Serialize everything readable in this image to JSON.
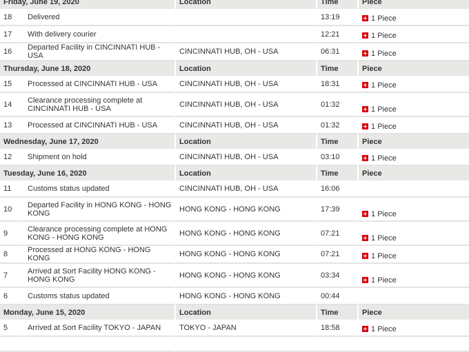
{
  "colors": {
    "header_bg": "#e8e8e6",
    "piece_icon": "#d40511"
  },
  "columns": {
    "location": "Location",
    "time": "Time",
    "piece": "Piece"
  },
  "groups": [
    {
      "date": "Friday, June 19, 2020",
      "events": [
        {
          "n": "18",
          "desc": "Delivered",
          "loc": "",
          "time": "13:19",
          "piece": "1 Piece"
        },
        {
          "n": "17",
          "desc": "With delivery courier",
          "loc": "",
          "time": "12:21",
          "piece": "1 Piece"
        },
        {
          "n": "16",
          "desc": "Departed Facility in CINCINNATI HUB - USA",
          "loc": "CINCINNATI HUB, OH - USA",
          "time": "06:31",
          "piece": "1 Piece"
        }
      ]
    },
    {
      "date": "Thursday, June 18, 2020",
      "events": [
        {
          "n": "15",
          "desc": "Processed at CINCINNATI HUB - USA",
          "loc": "CINCINNATI HUB, OH - USA",
          "time": "18:31",
          "piece": "1 Piece"
        },
        {
          "n": "14",
          "desc": "Clearance processing complete at CINCINNATI HUB - USA",
          "loc": "CINCINNATI HUB, OH - USA",
          "time": "01:32",
          "piece": "1 Piece",
          "tall": true
        },
        {
          "n": "13",
          "desc": "Processed at CINCINNATI HUB - USA",
          "loc": "CINCINNATI HUB, OH - USA",
          "time": "01:32",
          "piece": "1 Piece"
        }
      ]
    },
    {
      "date": "Wednesday, June 17, 2020",
      "events": [
        {
          "n": "12",
          "desc": "Shipment on hold",
          "loc": "CINCINNATI HUB, OH - USA",
          "time": "03:10",
          "piece": "1 Piece"
        }
      ]
    },
    {
      "date": "Tuesday, June 16, 2020",
      "events": [
        {
          "n": "11",
          "desc": "Customs status updated",
          "loc": "CINCINNATI HUB, OH - USA",
          "time": "16:06",
          "piece": ""
        },
        {
          "n": "10",
          "desc": "Departed Facility in HONG KONG - HONG KONG",
          "loc": "HONG KONG - HONG KONG",
          "time": "17:39",
          "piece": "1 Piece",
          "tall": true
        },
        {
          "n": "9",
          "desc": "Clearance processing complete at HONG KONG - HONG KONG",
          "loc": "HONG KONG - HONG KONG",
          "time": "07:21",
          "piece": "1 Piece",
          "tall": true
        },
        {
          "n": "8",
          "desc": "Processed at HONG KONG - HONG KONG",
          "loc": "HONG KONG - HONG KONG",
          "time": "07:21",
          "piece": "1 Piece"
        },
        {
          "n": "7",
          "desc": "Arrived at Sort Facility HONG KONG - HONG KONG",
          "loc": "HONG KONG - HONG KONG",
          "time": "03:34",
          "piece": "1 Piece",
          "tall": true
        },
        {
          "n": "6",
          "desc": "Customs status updated",
          "loc": "HONG KONG - HONG KONG",
          "time": "00:44",
          "piece": ""
        }
      ]
    },
    {
      "date": "Monday, June 15, 2020",
      "events": [
        {
          "n": "5",
          "desc": "Arrived at Sort Facility TOKYO - JAPAN",
          "loc": "TOKYO - JAPAN",
          "time": "18:58",
          "piece": "1 Piece"
        }
      ]
    }
  ]
}
